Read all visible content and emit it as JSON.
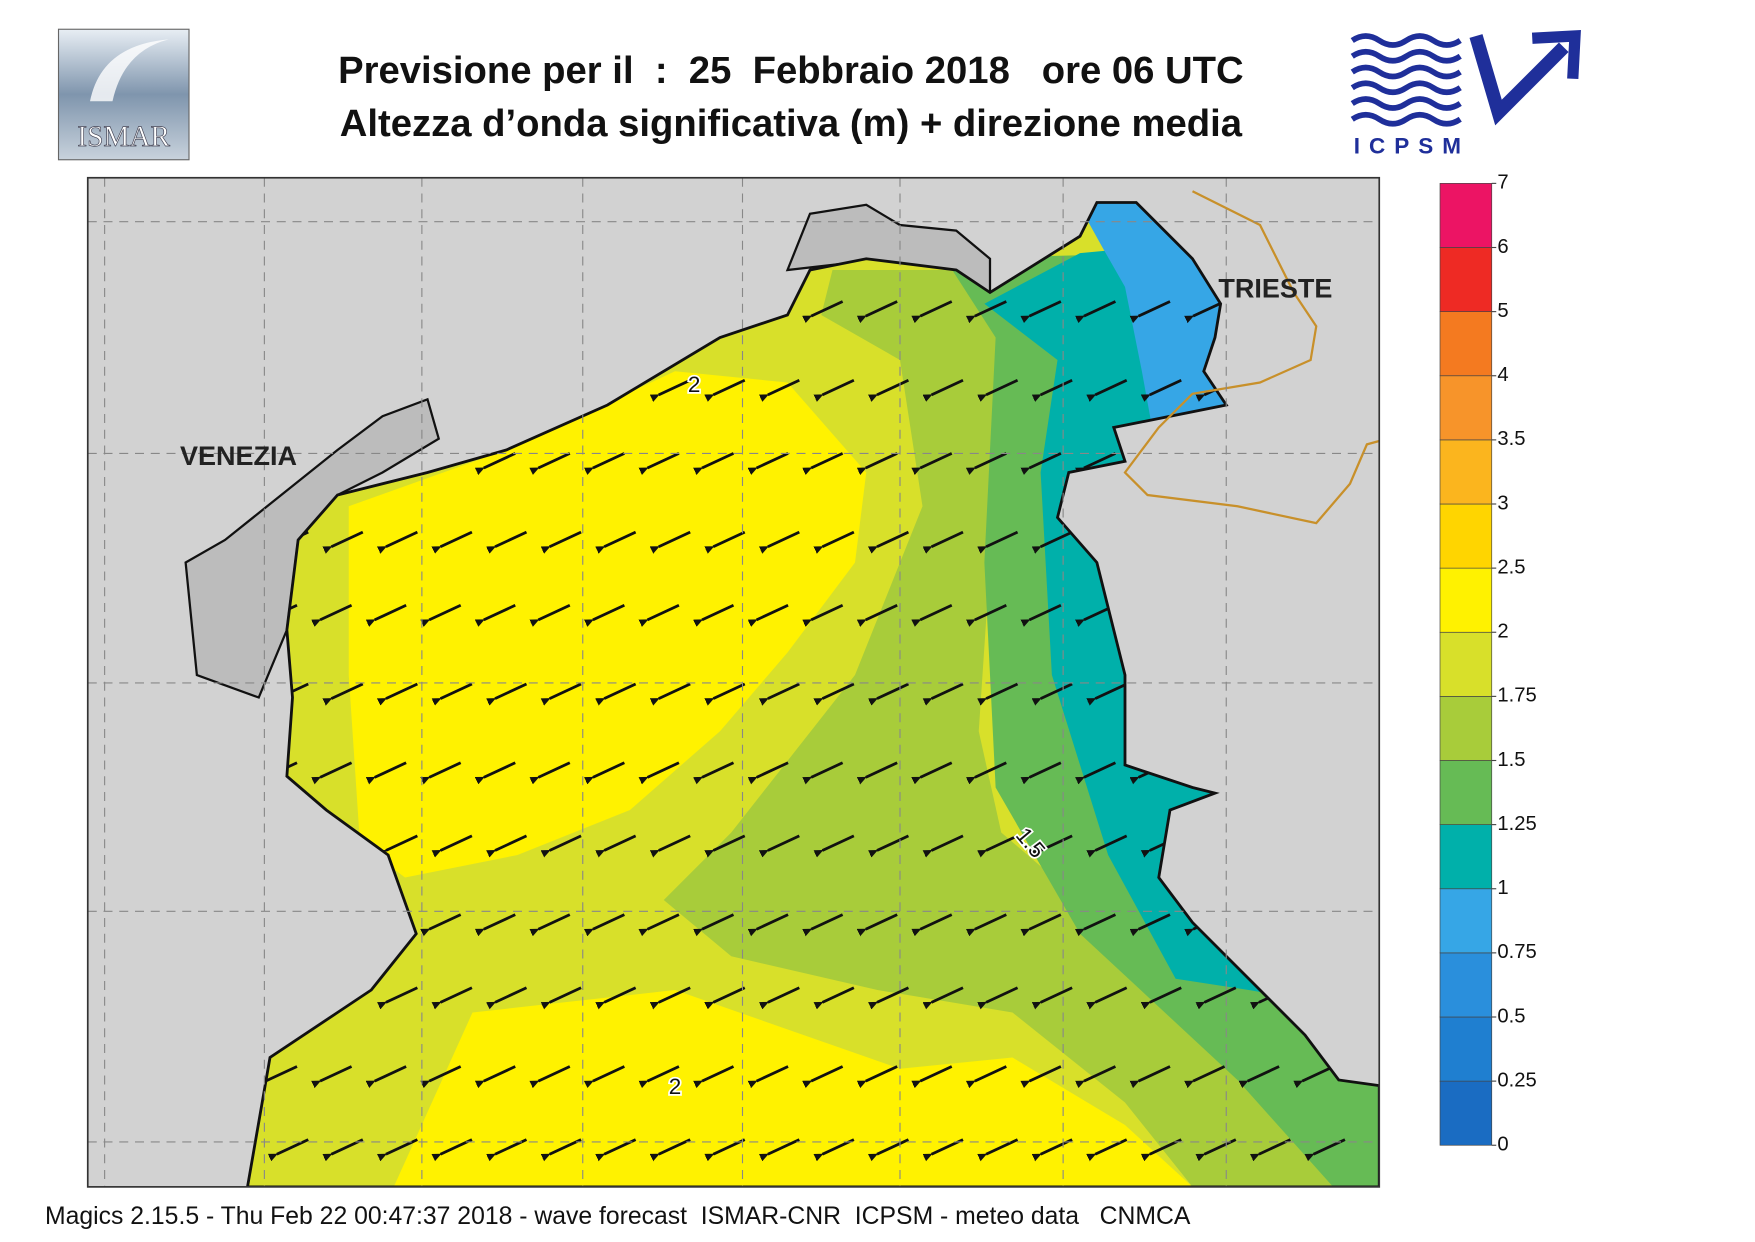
{
  "header": {
    "title_lines": [
      "Previsione per il  :  25  Febbraio 2018   ore 06 UTC",
      "Altezza d’onda significativa (m) + direzione media"
    ]
  },
  "logos": {
    "ismar": "ISMAR",
    "icpsm": "ICPSM"
  },
  "map": {
    "places": [
      "VENEZIA",
      "TRIESTE"
    ],
    "contour_labels": [
      "2",
      "2",
      "1.5"
    ]
  },
  "colorbar": {
    "ticks": [
      0,
      0.25,
      0.5,
      0.75,
      1,
      1.25,
      1.5,
      1.75,
      2,
      2.5,
      3,
      3.5,
      4,
      5,
      6,
      7
    ],
    "colors": [
      "#1a6cc2",
      "#1f7fd0",
      "#2a8fdc",
      "#36a6e6",
      "#00b0aa",
      "#66bb55",
      "#a8cc3a",
      "#d8e02a",
      "#fff200",
      "#ffd500",
      "#fbb51e",
      "#f7942a",
      "#f47a20",
      "#ee2a24",
      "#ec1464"
    ]
  },
  "footer": "Magics 2.15.5 - Thu Feb 22 00:47:37 2018 - wave forecast  ISMAR-CNR  ICPSM - meteo data   CNMCA"
}
